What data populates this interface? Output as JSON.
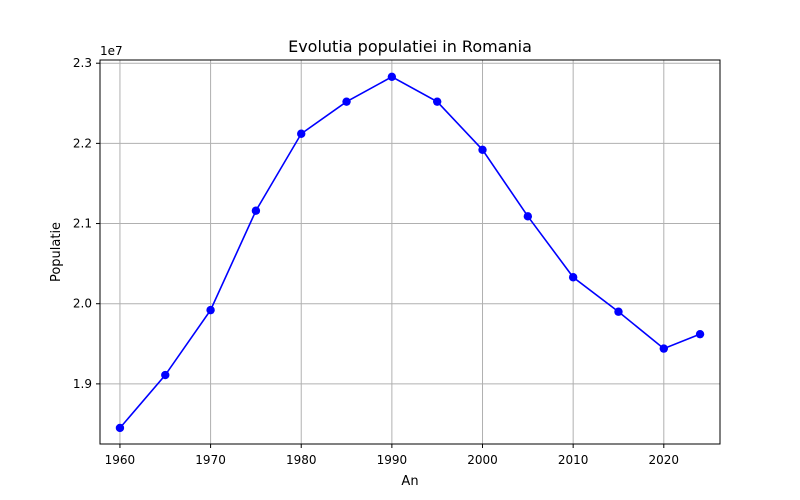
{
  "chart_data": {
    "type": "line",
    "title": "Evolutia populatiei in Romania",
    "xlabel": "An",
    "ylabel": "Populatie",
    "y_offset_label": "1e7",
    "x": [
      1960,
      1965,
      1970,
      1975,
      1980,
      1985,
      1990,
      1995,
      2000,
      2005,
      2010,
      2015,
      2020,
      2024
    ],
    "series": [
      {
        "values": [
          18450000,
          19110000,
          19920000,
          21160000,
          22120000,
          22520000,
          22830000,
          22520000,
          21920000,
          21090000,
          20330000,
          19900000,
          19440000,
          19620000
        ],
        "color": "#0000ff",
        "marker": "circle"
      }
    ],
    "xlim": [
      1957.8,
      2026.2
    ],
    "ylim": [
      18250000,
      23040000
    ],
    "xticks": [
      1960,
      1970,
      1980,
      1990,
      2000,
      2010,
      2020
    ],
    "xtick_labels": [
      "1960",
      "1970",
      "1980",
      "1990",
      "2000",
      "2010",
      "2020"
    ],
    "yticks": [
      19000000,
      20000000,
      21000000,
      22000000,
      23000000
    ],
    "ytick_labels": [
      "1.9",
      "2.0",
      "2.1",
      "2.2",
      "2.3"
    ],
    "grid": true,
    "legend": false
  }
}
